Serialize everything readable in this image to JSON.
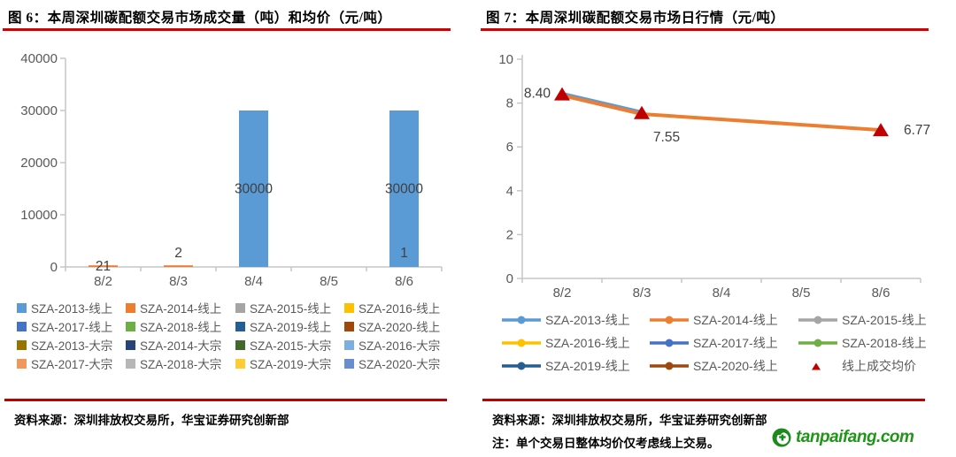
{
  "left_panel": {
    "title": "图 6：本周深圳碳配额交易市场成交量（吨）和均价（元/吨）",
    "source": "资料来源：深圳排放权交易所，华宝证券研究创新部",
    "chart_data": {
      "type": "bar",
      "title": "本周深圳碳配额交易市场成交量（吨）和均价（元/吨）",
      "categories": [
        "8/2",
        "8/3",
        "8/4",
        "8/5",
        "8/6"
      ],
      "ylim": [
        0,
        40000
      ],
      "yticks": [
        0,
        10000,
        20000,
        30000,
        40000
      ],
      "grid": "off",
      "legend_position": "bottom",
      "bars": [
        {
          "category": "8/2",
          "series": "SZA-2014-线上",
          "value": 21,
          "label": "21",
          "label_pos": "on-axis"
        },
        {
          "category": "8/3",
          "series": "SZA-2014-线上",
          "value": 2,
          "label": "2",
          "label_pos": "near-axis"
        },
        {
          "category": "8/6",
          "series": "SZA-2014-线上",
          "value": 1,
          "label": "1",
          "label_pos": "near-axis"
        },
        {
          "category": "8/4",
          "series": "SZA-2013-线上",
          "value": 30000,
          "label": "30000",
          "label_pos": "center"
        },
        {
          "category": "8/6",
          "series": "SZA-2013-线上",
          "value": 30000,
          "label": "30000",
          "label_pos": "center"
        }
      ],
      "legend": [
        {
          "label": "SZA-2013-线上",
          "color": "#5B9BD5"
        },
        {
          "label": "SZA-2014-线上",
          "color": "#ED7D31"
        },
        {
          "label": "SZA-2015-线上",
          "color": "#A5A5A5"
        },
        {
          "label": "SZA-2016-线上",
          "color": "#FFC000"
        },
        {
          "label": "SZA-2017-线上",
          "color": "#4472C4"
        },
        {
          "label": "SZA-2018-线上",
          "color": "#70AD47"
        },
        {
          "label": "SZA-2019-线上",
          "color": "#255E91"
        },
        {
          "label": "SZA-2020-线上",
          "color": "#9E480E"
        },
        {
          "label": "SZA-2013-大宗",
          "color": "#997300"
        },
        {
          "label": "SZA-2014-大宗",
          "color": "#264478"
        },
        {
          "label": "SZA-2015-大宗",
          "color": "#43682B"
        },
        {
          "label": "SZA-2016-大宗",
          "color": "#7CAFDD"
        },
        {
          "label": "SZA-2017-大宗",
          "color": "#F1975A"
        },
        {
          "label": "SZA-2018-大宗",
          "color": "#B7B7B7"
        },
        {
          "label": "SZA-2019-大宗",
          "color": "#FFCD33"
        },
        {
          "label": "SZA-2020-大宗",
          "color": "#698ED0"
        }
      ]
    }
  },
  "right_panel": {
    "title": "图 7：本周深圳碳配额交易市场日行情（元/吨）",
    "source": "资料来源：深圳排放权交易所，华宝证券研究创新部",
    "note": "注：单个交易日整体均价仅考虑线上交易。",
    "chart_data": {
      "type": "line",
      "title": "本周深圳碳配额交易市场日行情（元/吨）",
      "categories": [
        "8/2",
        "8/3",
        "8/4",
        "8/5",
        "8/6"
      ],
      "ylim": [
        0,
        10
      ],
      "yticks": [
        0,
        2,
        4,
        6,
        8,
        10
      ],
      "grid": "off",
      "legend_position": "bottom",
      "series": [
        {
          "name": "SZA-2013-线上",
          "color": "#5B9BD5",
          "width": 3,
          "points": [
            {
              "x": "8/2",
              "y": 8.45
            },
            {
              "x": "8/3",
              "y": 7.6
            }
          ]
        },
        {
          "name": "SZA-2014-线上",
          "color": "#ED7D31",
          "width": 4,
          "points": [
            {
              "x": "8/2",
              "y": 8.35
            },
            {
              "x": "8/3",
              "y": 7.5
            },
            {
              "x": "8/6",
              "y": 6.77
            }
          ]
        }
      ],
      "markers": {
        "name": "线上成交均价",
        "color": "#C00000",
        "points": [
          {
            "x": "8/2",
            "y": 8.4,
            "label": "8.40",
            "label_pos": "left"
          },
          {
            "x": "8/3",
            "y": 7.55,
            "label": "7.55",
            "label_pos": "below"
          },
          {
            "x": "8/6",
            "y": 6.77,
            "label": "6.77",
            "label_pos": "right"
          }
        ]
      },
      "legend": [
        {
          "label": "SZA-2013-线上",
          "color": "#5B9BD5",
          "marker": "line-dot"
        },
        {
          "label": "SZA-2014-线上",
          "color": "#ED7D31",
          "marker": "line-dot"
        },
        {
          "label": "SZA-2015-线上",
          "color": "#A5A5A5",
          "marker": "line-dot"
        },
        {
          "label": "SZA-2016-线上",
          "color": "#FFC000",
          "marker": "line-dot"
        },
        {
          "label": "SZA-2017-线上",
          "color": "#4472C4",
          "marker": "line-dot"
        },
        {
          "label": "SZA-2018-线上",
          "color": "#70AD47",
          "marker": "line-dot"
        },
        {
          "label": "SZA-2019-线上",
          "color": "#255E91",
          "marker": "line-dot"
        },
        {
          "label": "SZA-2020-线上",
          "color": "#9E480E",
          "marker": "line-dot"
        },
        {
          "label": "线上成交均价",
          "color": "#C00000",
          "marker": "triangle"
        }
      ]
    }
  },
  "footer": {
    "logo_text": "tanpaifang.com",
    "logo_color": "#1f9617"
  },
  "style_colors": {
    "title_underline": "#d40000",
    "footer_divider": "#c00000",
    "axis_line": "#c6c6c6",
    "tick_label": "#595959",
    "data_label": "#404040"
  }
}
